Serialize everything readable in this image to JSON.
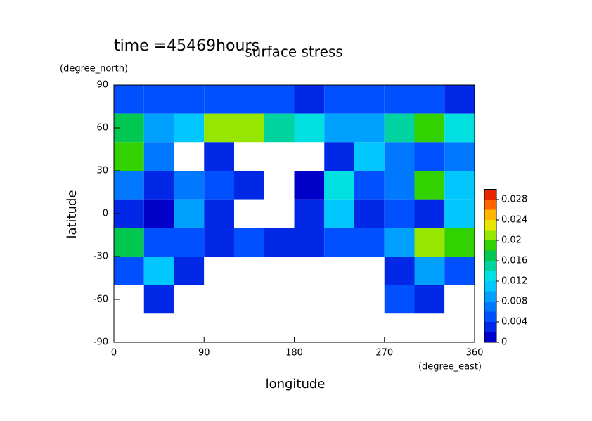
{
  "chart_data": {
    "type": "contourf",
    "title": "surface stress",
    "subtitle": "time =45469hours",
    "x_label": "longitude",
    "y_label": "latitude",
    "x_unit": "(degree_east)",
    "y_unit": "(degree_north)",
    "x": [
      15,
      45,
      75,
      105,
      135,
      165,
      195,
      225,
      255,
      285,
      315,
      345
    ],
    "y": [
      80,
      60,
      40,
      20,
      0,
      -20,
      -40,
      -60,
      -80
    ],
    "z": [
      [
        0.006,
        0.006,
        0.006,
        0.006,
        0.006,
        0.006,
        0.004,
        0.006,
        0.006,
        0.006,
        0.006,
        0.004
      ],
      [
        0.018,
        0.01,
        0.012,
        0.022,
        0.022,
        0.016,
        0.014,
        0.01,
        0.01,
        0.016,
        0.02,
        0.014
      ],
      [
        0.02,
        0.008,
        0,
        0.004,
        0,
        0,
        0,
        0.004,
        0.012,
        0.008,
        0.006,
        0.008
      ],
      [
        0.008,
        0.004,
        0.008,
        0.006,
        0.004,
        0,
        0.002,
        0.014,
        0.006,
        0.008,
        0.02,
        0.012
      ],
      [
        0.004,
        0.002,
        0.01,
        0.004,
        0,
        0,
        0.004,
        0.012,
        0.004,
        0.006,
        0.004,
        0.012
      ],
      [
        0.018,
        0.006,
        0.006,
        0.004,
        0.006,
        0.004,
        0.004,
        0.006,
        0.006,
        0.01,
        0.022,
        0.02
      ],
      [
        0.006,
        0.012,
        0.004,
        0,
        0,
        0,
        0,
        0,
        0,
        0.004,
        0.01,
        0.006
      ],
      [
        0,
        0.004,
        0,
        0,
        0,
        0,
        0,
        0,
        0,
        0.006,
        0.004,
        0
      ],
      [
        0,
        0,
        0,
        0,
        0,
        0,
        0,
        0,
        0,
        0,
        0,
        0
      ]
    ],
    "xlim": [
      0,
      360
    ],
    "xticks": [
      0,
      90,
      180,
      270,
      360
    ],
    "ylim": [
      -90,
      90
    ],
    "yticks": [
      -90,
      -60,
      -30,
      0,
      30,
      60,
      90
    ],
    "zlim": [
      0,
      0.03
    ],
    "zticks": [
      0,
      0.004,
      0.008,
      0.012,
      0.016,
      0.02,
      0.024,
      0.028
    ],
    "colors": [
      "#ffffff",
      "#0000c8",
      "#0028e6",
      "#0050ff",
      "#0078ff",
      "#00a0ff",
      "#00c8ff",
      "#00e0e0",
      "#00d2a0",
      "#00c850",
      "#32d200",
      "#96e600",
      "#e6e600",
      "#ffb400",
      "#ff6400",
      "#e62800"
    ]
  }
}
